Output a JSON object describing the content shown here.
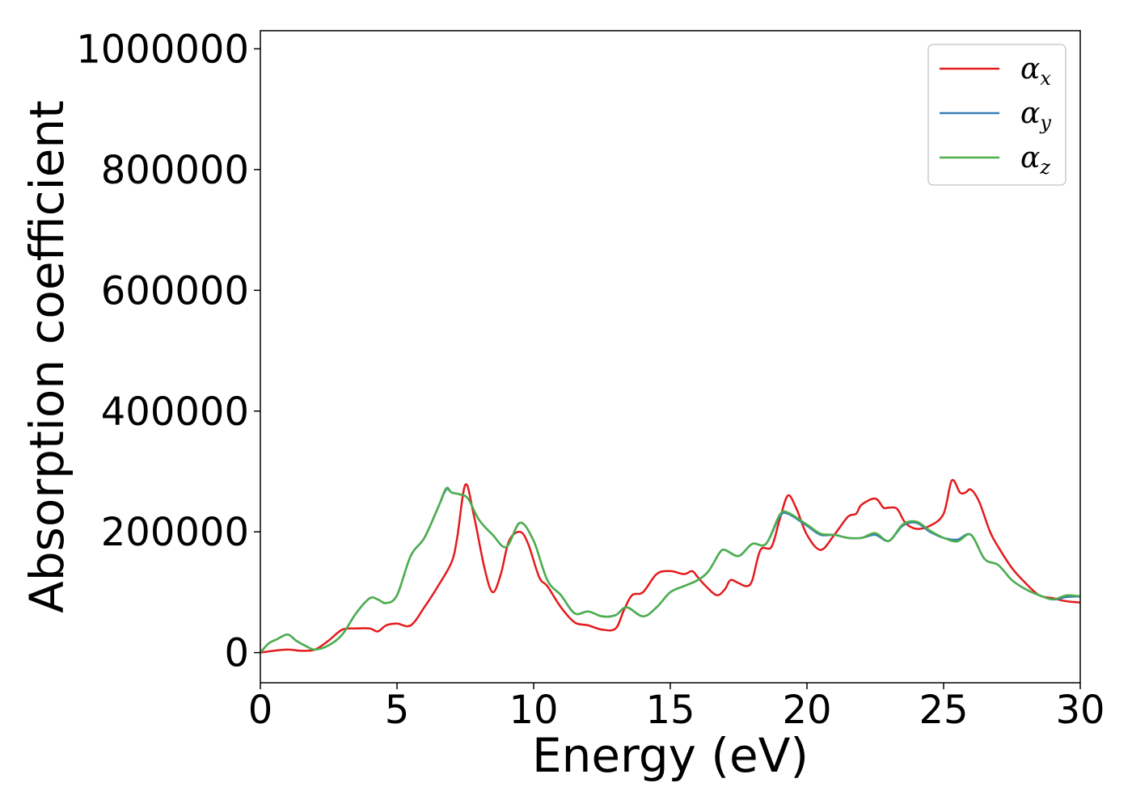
{
  "chart_data": {
    "type": "line",
    "xlabel": "Energy (eV)",
    "ylabel": "Absorption coefficient",
    "xlim": [
      0,
      30
    ],
    "ylim": [
      -50000,
      1030000
    ],
    "xticks": [
      0,
      5,
      10,
      15,
      20,
      25,
      30
    ],
    "yticks": [
      0,
      200000,
      400000,
      600000,
      800000,
      1000000
    ],
    "grid": false,
    "legend_position": "top-right",
    "series": [
      {
        "name": "α_x",
        "symbol": "α",
        "sub": "x",
        "color": "#e41a1c",
        "x": [
          0,
          0.5,
          1,
          1.5,
          2,
          2.5,
          3,
          3.5,
          4,
          4.3,
          4.6,
          5,
          5.5,
          6,
          6.5,
          7,
          7.2,
          7.5,
          7.8,
          8.2,
          8.5,
          8.8,
          9.1,
          9.5,
          9.8,
          10.2,
          10.5,
          11,
          11.5,
          12,
          12.5,
          13,
          13.3,
          13.6,
          14,
          14.5,
          15,
          15.5,
          15.8,
          16,
          16.3,
          16.7,
          17,
          17.2,
          17.5,
          17.8,
          18,
          18.3,
          18.7,
          19,
          19.3,
          19.6,
          20,
          20.5,
          21,
          21.5,
          21.8,
          22,
          22.5,
          22.8,
          23,
          23.3,
          23.6,
          24,
          24.5,
          25,
          25.3,
          25.6,
          25.8,
          26,
          26.3,
          26.7,
          27,
          27.5,
          28,
          28.5,
          29,
          29.5,
          30
        ],
        "y": [
          0,
          3000,
          5000,
          3000,
          5000,
          20000,
          38000,
          40000,
          40000,
          35000,
          45000,
          48000,
          45000,
          75000,
          110000,
          150000,
          190000,
          278000,
          230000,
          140000,
          100000,
          130000,
          185000,
          200000,
          180000,
          125000,
          110000,
          75000,
          50000,
          45000,
          38000,
          40000,
          70000,
          95000,
          100000,
          130000,
          135000,
          130000,
          135000,
          125000,
          110000,
          95000,
          105000,
          120000,
          115000,
          110000,
          120000,
          170000,
          175000,
          220000,
          260000,
          240000,
          195000,
          170000,
          195000,
          225000,
          230000,
          245000,
          255000,
          240000,
          240000,
          238000,
          215000,
          205000,
          210000,
          230000,
          285000,
          265000,
          265000,
          270000,
          250000,
          200000,
          175000,
          140000,
          115000,
          95000,
          90000,
          85000,
          83000
        ]
      },
      {
        "name": "α_y",
        "symbol": "α",
        "sub": "y",
        "color": "#377eb8",
        "x": [
          0,
          0.3,
          0.6,
          1,
          1.3,
          1.7,
          2,
          2.5,
          3,
          3.5,
          4,
          4.3,
          4.6,
          5,
          5.5,
          6,
          6.5,
          6.8,
          7,
          7.3,
          7.6,
          8,
          8.5,
          9,
          9.5,
          10,
          10.5,
          11,
          11.5,
          12,
          12.5,
          13,
          13.4,
          14,
          14.5,
          15,
          15.5,
          16,
          16.4,
          16.8,
          17,
          17.5,
          18,
          18.5,
          19,
          19.3,
          20,
          20.5,
          21,
          21.5,
          22,
          22.5,
          23,
          23.5,
          24,
          24.5,
          25,
          25.5,
          26,
          26.5,
          27,
          27.5,
          28,
          28.5,
          29,
          29.5,
          30
        ],
        "y": [
          0,
          15000,
          22000,
          30000,
          20000,
          10000,
          5000,
          12000,
          30000,
          65000,
          90000,
          88000,
          82000,
          95000,
          160000,
          190000,
          240000,
          270000,
          265000,
          262000,
          255000,
          220000,
          195000,
          175000,
          215000,
          185000,
          120000,
          95000,
          65000,
          68000,
          60000,
          62000,
          75000,
          60000,
          75000,
          100000,
          110000,
          120000,
          135000,
          165000,
          170000,
          160000,
          180000,
          180000,
          225000,
          230000,
          210000,
          195000,
          195000,
          190000,
          190000,
          195000,
          185000,
          210000,
          215000,
          200000,
          190000,
          187000,
          195000,
          155000,
          145000,
          120000,
          105000,
          95000,
          88000,
          92000,
          93000
        ]
      },
      {
        "name": "α_z",
        "symbol": "α",
        "sub": "z",
        "color": "#4daf4a",
        "x": [
          0,
          0.3,
          0.6,
          1,
          1.3,
          1.7,
          2,
          2.5,
          3,
          3.5,
          4,
          4.3,
          4.6,
          5,
          5.5,
          6,
          6.5,
          6.8,
          7,
          7.3,
          7.6,
          8,
          8.5,
          9,
          9.5,
          10,
          10.5,
          11,
          11.5,
          12,
          12.5,
          13,
          13.4,
          14,
          14.5,
          15,
          15.5,
          16,
          16.4,
          16.8,
          17,
          17.5,
          18,
          18.5,
          19,
          19.3,
          20,
          20.5,
          21,
          21.5,
          22,
          22.5,
          23,
          23.5,
          24,
          24.5,
          25,
          25.5,
          26,
          26.5,
          27,
          27.5,
          28,
          28.5,
          29,
          29.5,
          30
        ],
        "y": [
          0,
          15000,
          22000,
          30000,
          20000,
          10000,
          5000,
          12000,
          30000,
          65000,
          90000,
          88000,
          82000,
          95000,
          160000,
          190000,
          240000,
          272000,
          265000,
          262000,
          255000,
          220000,
          195000,
          175000,
          215000,
          185000,
          120000,
          95000,
          65000,
          68000,
          60000,
          62000,
          75000,
          60000,
          75000,
          100000,
          110000,
          120000,
          135000,
          165000,
          170000,
          160000,
          180000,
          180000,
          228000,
          232000,
          212000,
          197000,
          195000,
          190000,
          190000,
          198000,
          185000,
          212000,
          217000,
          202000,
          190000,
          184000,
          195000,
          155000,
          145000,
          120000,
          105000,
          95000,
          88000,
          95000,
          93000
        ]
      }
    ]
  }
}
